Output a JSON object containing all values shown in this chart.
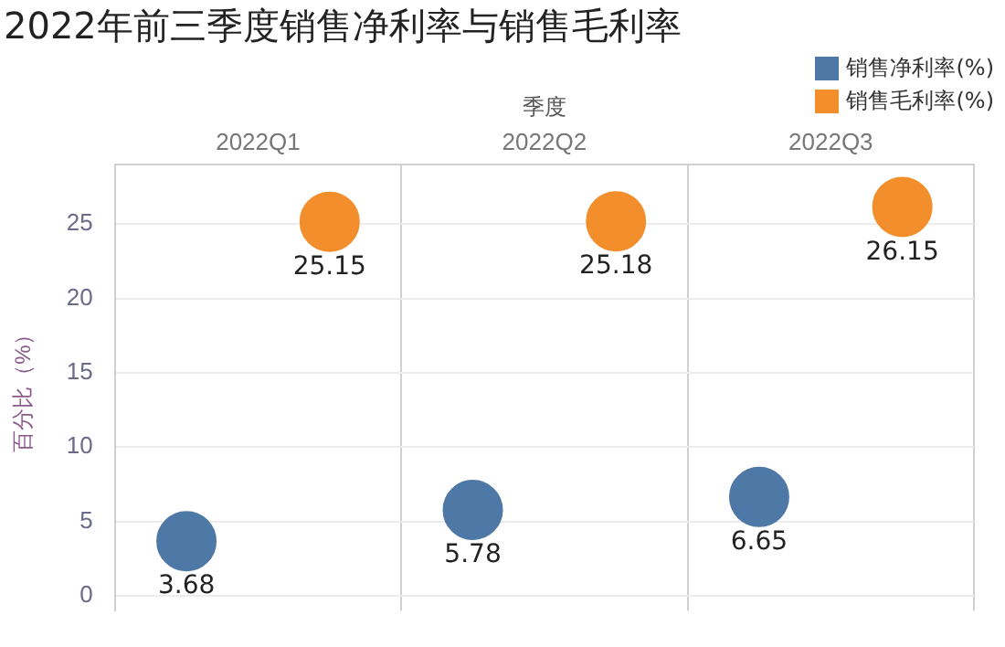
{
  "chart_data": {
    "type": "scatter",
    "title": "2022年前三季度销售净利率与销售毛利率",
    "xlabel": "季度",
    "ylabel": "百分比（%）",
    "categories": [
      "2022Q1",
      "2022Q2",
      "2022Q3"
    ],
    "series": [
      {
        "name": "销售净利率(%)",
        "color": "#4e79a7",
        "values": [
          3.68,
          5.78,
          6.65
        ]
      },
      {
        "name": "销售毛利率(%)",
        "color": "#f28e2b",
        "values": [
          25.15,
          25.18,
          26.15
        ]
      }
    ],
    "ylim": [
      -1,
      29
    ],
    "yticks": [
      0,
      5,
      10,
      15,
      20,
      25
    ],
    "grid": "y",
    "legend": "top right",
    "data_labels": true,
    "marker": "circle"
  }
}
